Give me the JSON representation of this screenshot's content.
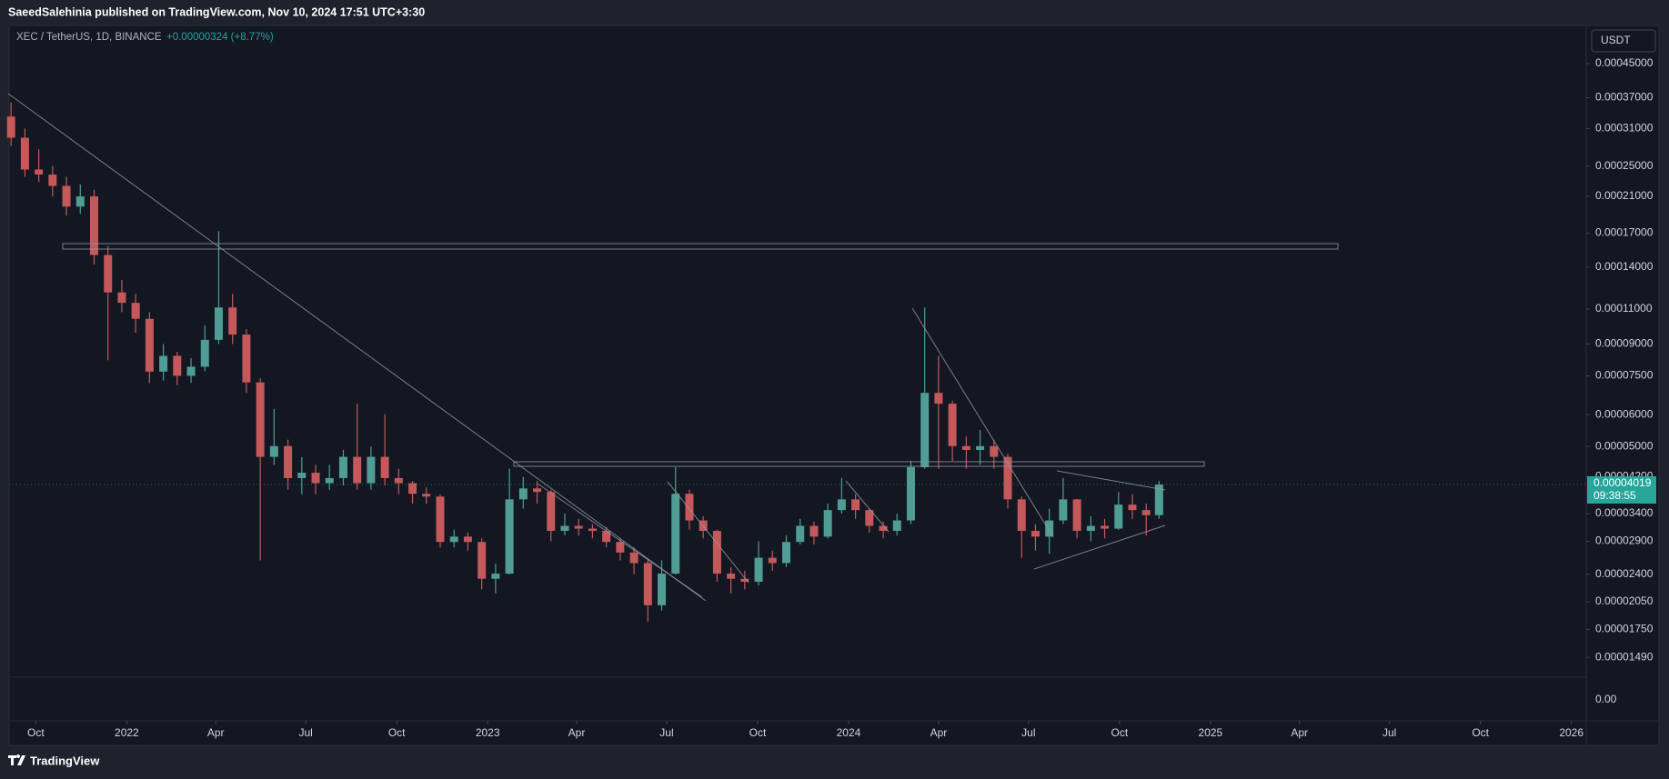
{
  "header": {
    "text": "SaeedSalehinia published on TradingView.com, Nov 10, 2024 17:51 UTC+3:30"
  },
  "legend": {
    "symbol": "XEC / TetherUS, 1D, BINANCE",
    "change": "+0.00000324 (+8.77%)"
  },
  "chart_data": {
    "type": "candlestick",
    "log_scale": true,
    "grid": false,
    "up_color": "#4f9d94",
    "down_color": "#c4585a",
    "currency": "USDT",
    "last_price": {
      "value": 4.019e-05,
      "label": "0.00004019"
    },
    "countdown": "09:38:55",
    "x": [
      "2021-09-06",
      "2021-09-20",
      "2021-10-04",
      "2021-10-18",
      "2021-11-01",
      "2021-11-15",
      "2021-11-29",
      "2021-12-13",
      "2021-12-27",
      "2022-01-10",
      "2022-01-24",
      "2022-02-07",
      "2022-02-21",
      "2022-03-07",
      "2022-03-21",
      "2022-04-04",
      "2022-04-18",
      "2022-05-02",
      "2022-05-16",
      "2022-05-30",
      "2022-06-13",
      "2022-06-27",
      "2022-07-11",
      "2022-07-25",
      "2022-08-08",
      "2022-08-22",
      "2022-09-05",
      "2022-09-19",
      "2022-10-03",
      "2022-10-17",
      "2022-10-31",
      "2022-11-14",
      "2022-11-28",
      "2022-12-12",
      "2022-12-26",
      "2023-01-09",
      "2023-01-23",
      "2023-02-06",
      "2023-02-20",
      "2023-03-06",
      "2023-03-20",
      "2023-04-03",
      "2023-04-17",
      "2023-05-01",
      "2023-05-15",
      "2023-05-29",
      "2023-06-12",
      "2023-06-26",
      "2023-07-10",
      "2023-07-24",
      "2023-08-07",
      "2023-08-21",
      "2023-09-04",
      "2023-09-18",
      "2023-10-02",
      "2023-10-16",
      "2023-10-30",
      "2023-11-13",
      "2023-11-27",
      "2023-12-11",
      "2023-12-25",
      "2024-01-08",
      "2024-01-22",
      "2024-02-05",
      "2024-02-19",
      "2024-03-04",
      "2024-03-18",
      "2024-04-01",
      "2024-04-15",
      "2024-04-29",
      "2024-05-13",
      "2024-05-27",
      "2024-06-10",
      "2024-06-24",
      "2024-07-08",
      "2024-07-22",
      "2024-08-05",
      "2024-08-19",
      "2024-09-02",
      "2024-09-16",
      "2024-09-30",
      "2024-10-14",
      "2024-10-28",
      "2024-11-10"
    ],
    "open": [
      0.000332,
      0.000294,
      0.000245,
      0.000238,
      0.000223,
      0.000198,
      0.00021,
      0.00015,
      0.000121,
      0.000114,
      0.000104,
      7.68e-05,
      8.41e-05,
      7.5e-05,
      7.9e-05,
      9.22e-05,
      0.000111,
      9.5e-05,
      7.22e-05,
      4.71e-05,
      5.01e-05,
      4.17e-05,
      4.3e-05,
      4.05e-05,
      4.17e-05,
      4.71e-05,
      4.05e-05,
      4.71e-05,
      4.17e-05,
      4.05e-05,
      3.81e-05,
      3.75e-05,
      2.89e-05,
      2.98e-05,
      2.89e-05,
      2.34e-05,
      2.41e-05,
      3.69e-05,
      3.93e-05,
      3.85e-05,
      3.08e-05,
      3.17e-05,
      3.12e-05,
      3.08e-05,
      2.89e-05,
      2.72e-05,
      2.56e-05,
      2.01e-05,
      2.41e-05,
      3.81e-05,
      3.27e-05,
      3.08e-05,
      2.41e-05,
      2.34e-05,
      2.3e-05,
      2.64e-05,
      2.56e-05,
      2.89e-05,
      3.17e-05,
      2.98e-05,
      3.47e-05,
      3.69e-05,
      3.47e-05,
      3.17e-05,
      3.08e-05,
      3.27e-05,
      4.44e-05,
      6.8e-05,
      6.39e-05,
      5.01e-05,
      4.9e-05,
      5.01e-05,
      4.71e-05,
      3.69e-05,
      3.08e-05,
      2.98e-05,
      3.27e-05,
      3.69e-05,
      3.08e-05,
      3.17e-05,
      3.12e-05,
      3.58e-05,
      3.47e-05,
      3.37e-05
    ],
    "high": [
      0.00036,
      0.00031,
      0.000275,
      0.00025,
      0.000235,
      0.000225,
      0.000218,
      0.000158,
      0.00013,
      0.00012,
      0.000108,
      9e-05,
      8.6e-05,
      8.3e-05,
      0.0001,
      0.000172,
      0.00012,
      9.8e-05,
      7.4e-05,
      6.2e-05,
      5.2e-05,
      4.7e-05,
      4.5e-05,
      4.5e-05,
      4.9e-05,
      6.39e-05,
      5e-05,
      6.02e-05,
      4.4e-05,
      4.1e-05,
      3.95e-05,
      3.8e-05,
      3.1e-05,
      3.05e-05,
      2.95e-05,
      2.55e-05,
      4.4e-05,
      4.2e-05,
      4.1e-05,
      3.9e-05,
      3.4e-05,
      3.3e-05,
      3.2e-05,
      3.15e-05,
      2.95e-05,
      2.8e-05,
      2.6e-05,
      2.6e-05,
      4.44e-05,
      3.9e-05,
      3.35e-05,
      3.1e-05,
      2.5e-05,
      2.45e-05,
      2.9e-05,
      2.75e-05,
      3e-05,
      3.3e-05,
      3.25e-05,
      3.6e-05,
      4.17e-05,
      3.8e-05,
      3.5e-05,
      3.25e-05,
      3.4e-05,
      4.6e-05,
      0.000111,
      8.41e-05,
      6.5e-05,
      5.3e-05,
      5.5e-05,
      5.2e-05,
      4.8e-05,
      3.75e-05,
      3.2e-05,
      3.5e-05,
      4.17e-05,
      3.7e-05,
      3.35e-05,
      3.3e-05,
      3.85e-05,
      3.8e-05,
      3.6e-05,
      4.1e-05
    ],
    "low": [
      0.00028,
      0.000235,
      0.000228,
      0.00021,
      0.000188,
      0.00019,
      0.000142,
      8.2e-05,
      0.000108,
      9.6e-05,
      7.2e-05,
      7.3e-05,
      7.1e-05,
      7.2e-05,
      7.7e-05,
      9e-05,
      9e-05,
      6.8e-05,
      2.6e-05,
      4.5e-05,
      3.9e-05,
      3.8e-05,
      3.8e-05,
      3.9e-05,
      4e-05,
      3.9e-05,
      3.9e-05,
      4e-05,
      3.8e-05,
      3.6e-05,
      3.6e-05,
      2.8e-05,
      2.8e-05,
      2.75e-05,
      2.2e-05,
      2.15e-05,
      2.4e-05,
      3.5e-05,
      3.6e-05,
      2.9e-05,
      3e-05,
      3e-05,
      2.95e-05,
      2.8e-05,
      2.6e-05,
      2.4e-05,
      1.83e-05,
      1.95e-05,
      2.4e-05,
      3.1e-05,
      2.95e-05,
      2.3e-05,
      2.15e-05,
      2.2e-05,
      2.25e-05,
      2.45e-05,
      2.5e-05,
      2.85e-05,
      2.85e-05,
      2.95e-05,
      3.4e-05,
      3.3e-05,
      3.05e-05,
      2.95e-05,
      3e-05,
      3.2e-05,
      4.4e-05,
      4.4e-05,
      4.6e-05,
      4.4e-05,
      4.5e-05,
      4.4e-05,
      3.5e-05,
      2.64e-05,
      2.75e-05,
      2.7e-05,
      3.2e-05,
      2.95e-05,
      2.9e-05,
      2.95e-05,
      3.1e-05,
      3.3e-05,
      3e-05,
      3.3e-05
    ],
    "close": [
      0.000294,
      0.000245,
      0.000238,
      0.000223,
      0.000198,
      0.00021,
      0.00015,
      0.000121,
      0.000114,
      0.000104,
      7.68e-05,
      8.41e-05,
      7.5e-05,
      7.9e-05,
      9.22e-05,
      0.000111,
      9.5e-05,
      7.22e-05,
      4.71e-05,
      5.01e-05,
      4.17e-05,
      4.3e-05,
      4.05e-05,
      4.17e-05,
      4.71e-05,
      4.05e-05,
      4.71e-05,
      4.17e-05,
      4.05e-05,
      3.81e-05,
      3.75e-05,
      2.89e-05,
      2.98e-05,
      2.89e-05,
      2.34e-05,
      2.41e-05,
      3.69e-05,
      3.93e-05,
      3.85e-05,
      3.08e-05,
      3.17e-05,
      3.12e-05,
      3.08e-05,
      2.89e-05,
      2.72e-05,
      2.56e-05,
      2.01e-05,
      2.41e-05,
      3.81e-05,
      3.27e-05,
      3.08e-05,
      2.41e-05,
      2.34e-05,
      2.3e-05,
      2.64e-05,
      2.56e-05,
      2.89e-05,
      3.17e-05,
      2.98e-05,
      3.47e-05,
      3.69e-05,
      3.47e-05,
      3.17e-05,
      3.08e-05,
      3.27e-05,
      4.44e-05,
      6.8e-05,
      6.39e-05,
      5.01e-05,
      4.9e-05,
      5.01e-05,
      4.71e-05,
      3.69e-05,
      3.08e-05,
      2.98e-05,
      3.27e-05,
      3.69e-05,
      3.08e-05,
      3.17e-05,
      3.12e-05,
      3.58e-05,
      3.47e-05,
      3.37e-05,
      4.019e-05
    ],
    "xlim": [
      "2021-09-04",
      "2026-01-16"
    ],
    "xticks": [
      {
        "value": "2021-10",
        "label": "Oct"
      },
      {
        "value": "2022-01",
        "label": "2022"
      },
      {
        "value": "2022-04",
        "label": "Apr"
      },
      {
        "value": "2022-07",
        "label": "Jul"
      },
      {
        "value": "2022-10",
        "label": "Oct"
      },
      {
        "value": "2023-01",
        "label": "2023"
      },
      {
        "value": "2023-04",
        "label": "Apr"
      },
      {
        "value": "2023-07",
        "label": "Jul"
      },
      {
        "value": "2023-10",
        "label": "Oct"
      },
      {
        "value": "2024-01",
        "label": "2024"
      },
      {
        "value": "2024-04",
        "label": "Apr"
      },
      {
        "value": "2024-07",
        "label": "Jul"
      },
      {
        "value": "2024-10",
        "label": "Oct"
      },
      {
        "value": "2025-01",
        "label": "2025"
      },
      {
        "value": "2025-04",
        "label": "Apr"
      },
      {
        "value": "2025-07",
        "label": "Jul"
      },
      {
        "value": "2025-10",
        "label": "Oct"
      },
      {
        "value": "2026-01",
        "label": "2026"
      }
    ],
    "ylim": [
      1.33e-05,
      0.00056
    ],
    "yticks": [
      {
        "value": 0.00045,
        "label": "0.00045000"
      },
      {
        "value": 0.00037,
        "label": "0.00037000"
      },
      {
        "value": 0.00031,
        "label": "0.00031000"
      },
      {
        "value": 0.00025,
        "label": "0.00025000"
      },
      {
        "value": 0.00021,
        "label": "0.00021000"
      },
      {
        "value": 0.00017,
        "label": "0.00017000"
      },
      {
        "value": 0.00014,
        "label": "0.00014000"
      },
      {
        "value": 0.00011,
        "label": "0.00011000"
      },
      {
        "value": 9e-05,
        "label": "0.00009000"
      },
      {
        "value": 7.5e-05,
        "label": "0.00007500"
      },
      {
        "value": 6e-05,
        "label": "0.00006000"
      },
      {
        "value": 5e-05,
        "label": "0.00005000"
      },
      {
        "value": 4.2e-05,
        "label": "0.00004200"
      },
      {
        "value": 3.4e-05,
        "label": "0.00003400"
      },
      {
        "value": 2.9e-05,
        "label": "0.00002900"
      },
      {
        "value": 2.4e-05,
        "label": "0.00002400"
      },
      {
        "value": 2.05e-05,
        "label": "0.00002050"
      },
      {
        "value": 1.75e-05,
        "label": "0.00001750"
      },
      {
        "value": 1.49e-05,
        "label": "0.00001490"
      }
    ]
  },
  "lower_pane": {
    "yticks": [
      {
        "value": 0,
        "label": "0.00"
      }
    ]
  },
  "footer": {
    "brand": "TradingView"
  }
}
